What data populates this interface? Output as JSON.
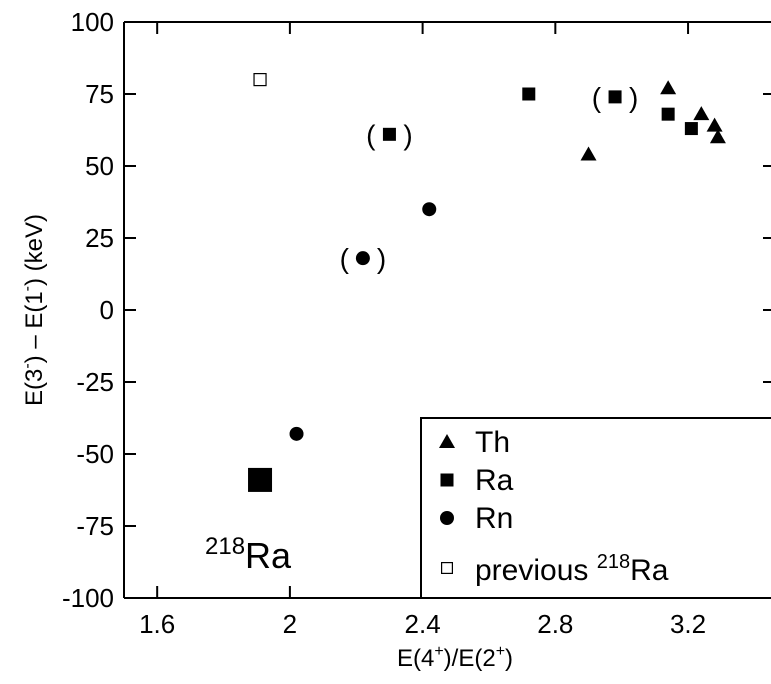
{
  "chart_data": {
    "type": "scatter",
    "xlabel": {
      "base": "E(4",
      "sup1": "+",
      "mid": ")/E(2",
      "sup2": "+",
      "end": ")"
    },
    "ylabel": {
      "base": "E(3",
      "sup1": "-",
      "mid": ") – E(1",
      "sup2": "-",
      "end": ") (keV)"
    },
    "xlim": [
      1.5,
      3.45
    ],
    "ylim": [
      -100,
      100
    ],
    "xticks": [
      1.6,
      2.0,
      2.4,
      2.8,
      3.2
    ],
    "xtick_labels": [
      "1.6",
      "2",
      "2.4",
      "2.8",
      "3.2"
    ],
    "yticks": [
      -100,
      -75,
      -50,
      -25,
      0,
      25,
      50,
      75,
      100
    ],
    "ytick_labels": [
      "-100",
      "-75",
      "-50",
      "-25",
      "0",
      "25",
      "50",
      "75",
      "100"
    ],
    "series": [
      {
        "name": "Th",
        "marker": "triangle",
        "points": [
          [
            2.9,
            54
          ],
          [
            3.14,
            77
          ],
          [
            3.24,
            68
          ],
          [
            3.28,
            64
          ],
          [
            3.29,
            60
          ]
        ]
      },
      {
        "name": "Ra",
        "marker": "square",
        "points": [
          [
            2.3,
            61
          ],
          [
            2.72,
            75
          ],
          [
            2.98,
            74
          ],
          [
            3.14,
            68
          ],
          [
            3.21,
            63
          ]
        ]
      },
      {
        "name": "Rn",
        "marker": "circle",
        "points": [
          [
            2.22,
            18
          ],
          [
            2.42,
            35
          ],
          [
            2.02,
            -43
          ]
        ]
      },
      {
        "name": "previous ²¹⁸Ra",
        "marker": "open-square",
        "points": [
          [
            1.91,
            80
          ]
        ]
      }
    ],
    "highlight": {
      "name": "218Ra",
      "marker": "big-square",
      "point": [
        1.91,
        -59
      ]
    },
    "point_annotations": [
      {
        "text_left": "(",
        "text_right": ")",
        "point": [
          2.3,
          61
        ]
      },
      {
        "text_left": "(",
        "text_right": ")",
        "point": [
          2.98,
          74
        ]
      },
      {
        "text_left": "(",
        "text_right": ")",
        "point": [
          2.22,
          18
        ]
      }
    ],
    "highlight_label": {
      "sup": "218",
      "text": "Ra"
    },
    "legend": {
      "position": "bottom-right",
      "entries": [
        {
          "marker": "triangle",
          "label": "Th"
        },
        {
          "marker": "square",
          "label": "Ra"
        },
        {
          "marker": "circle",
          "label": "Rn"
        },
        {
          "marker": "open-square",
          "label_pre": "previous ",
          "label_sup": "218",
          "label_post": "Ra"
        }
      ]
    }
  }
}
